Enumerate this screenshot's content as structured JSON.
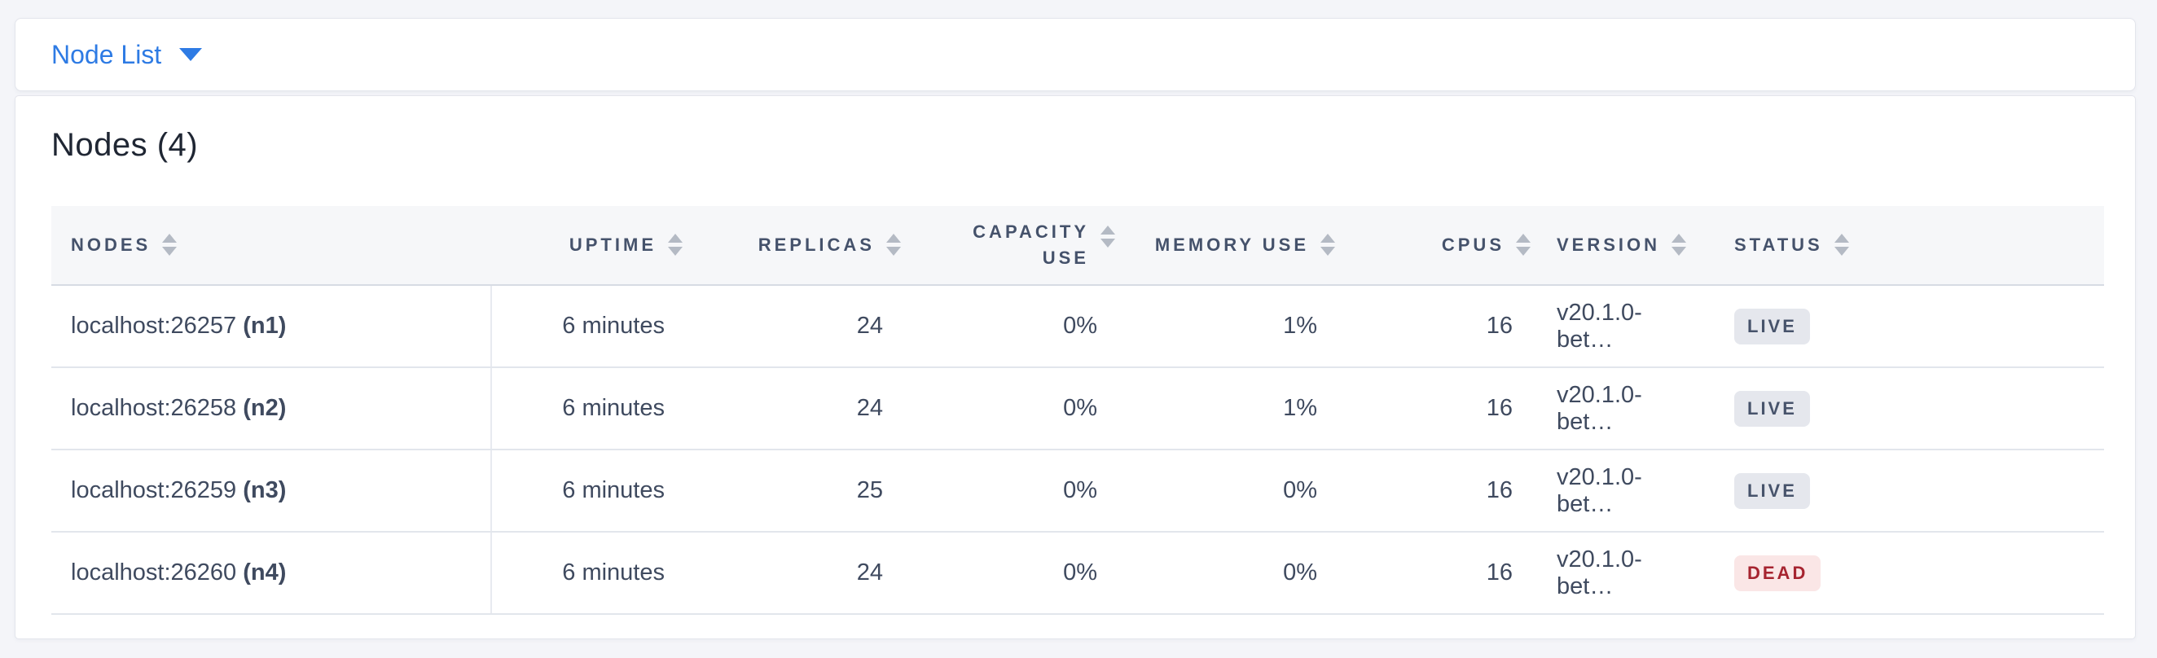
{
  "toolbar": {
    "dropdown_label": "Node List",
    "accent_color": "#2e7be4",
    "caret_icon": "chevron-down"
  },
  "main": {
    "title": "Nodes (4)"
  },
  "table": {
    "sort_icon": "sort-arrows",
    "columns": [
      {
        "key": "nodes",
        "label": "NODES",
        "align": "left"
      },
      {
        "key": "uptime",
        "label": "UPTIME",
        "align": "right"
      },
      {
        "key": "replicas",
        "label": "REPLICAS",
        "align": "right"
      },
      {
        "key": "capacity_use",
        "label": "CAPACITY USE",
        "align": "right"
      },
      {
        "key": "memory_use",
        "label": "MEMORY USE",
        "align": "right"
      },
      {
        "key": "cpus",
        "label": "CPUS",
        "align": "right"
      },
      {
        "key": "version",
        "label": "VERSION",
        "align": "left"
      },
      {
        "key": "status",
        "label": "STATUS",
        "align": "left"
      }
    ],
    "rows": [
      {
        "address": "localhost:26257",
        "node_id": "(n1)",
        "uptime": "6 minutes",
        "replicas": "24",
        "capacity_use": "0%",
        "memory_use": "1%",
        "cpus": "16",
        "version": "v20.1.0-bet…",
        "status": "LIVE"
      },
      {
        "address": "localhost:26258",
        "node_id": "(n2)",
        "uptime": "6 minutes",
        "replicas": "24",
        "capacity_use": "0%",
        "memory_use": "1%",
        "cpus": "16",
        "version": "v20.1.0-bet…",
        "status": "LIVE"
      },
      {
        "address": "localhost:26259",
        "node_id": "(n3)",
        "uptime": "6 minutes",
        "replicas": "25",
        "capacity_use": "0%",
        "memory_use": "0%",
        "cpus": "16",
        "version": "v20.1.0-bet…",
        "status": "LIVE"
      },
      {
        "address": "localhost:26260",
        "node_id": "(n4)",
        "uptime": "6 minutes",
        "replicas": "24",
        "capacity_use": "0%",
        "memory_use": "0%",
        "cpus": "16",
        "version": "v20.1.0-bet…",
        "status": "DEAD"
      }
    ],
    "status_styles": {
      "LIVE": {
        "bg": "#e5e7ed",
        "color": "#47536b"
      },
      "DEAD": {
        "bg": "#fae6e6",
        "color": "#a62430"
      }
    }
  }
}
